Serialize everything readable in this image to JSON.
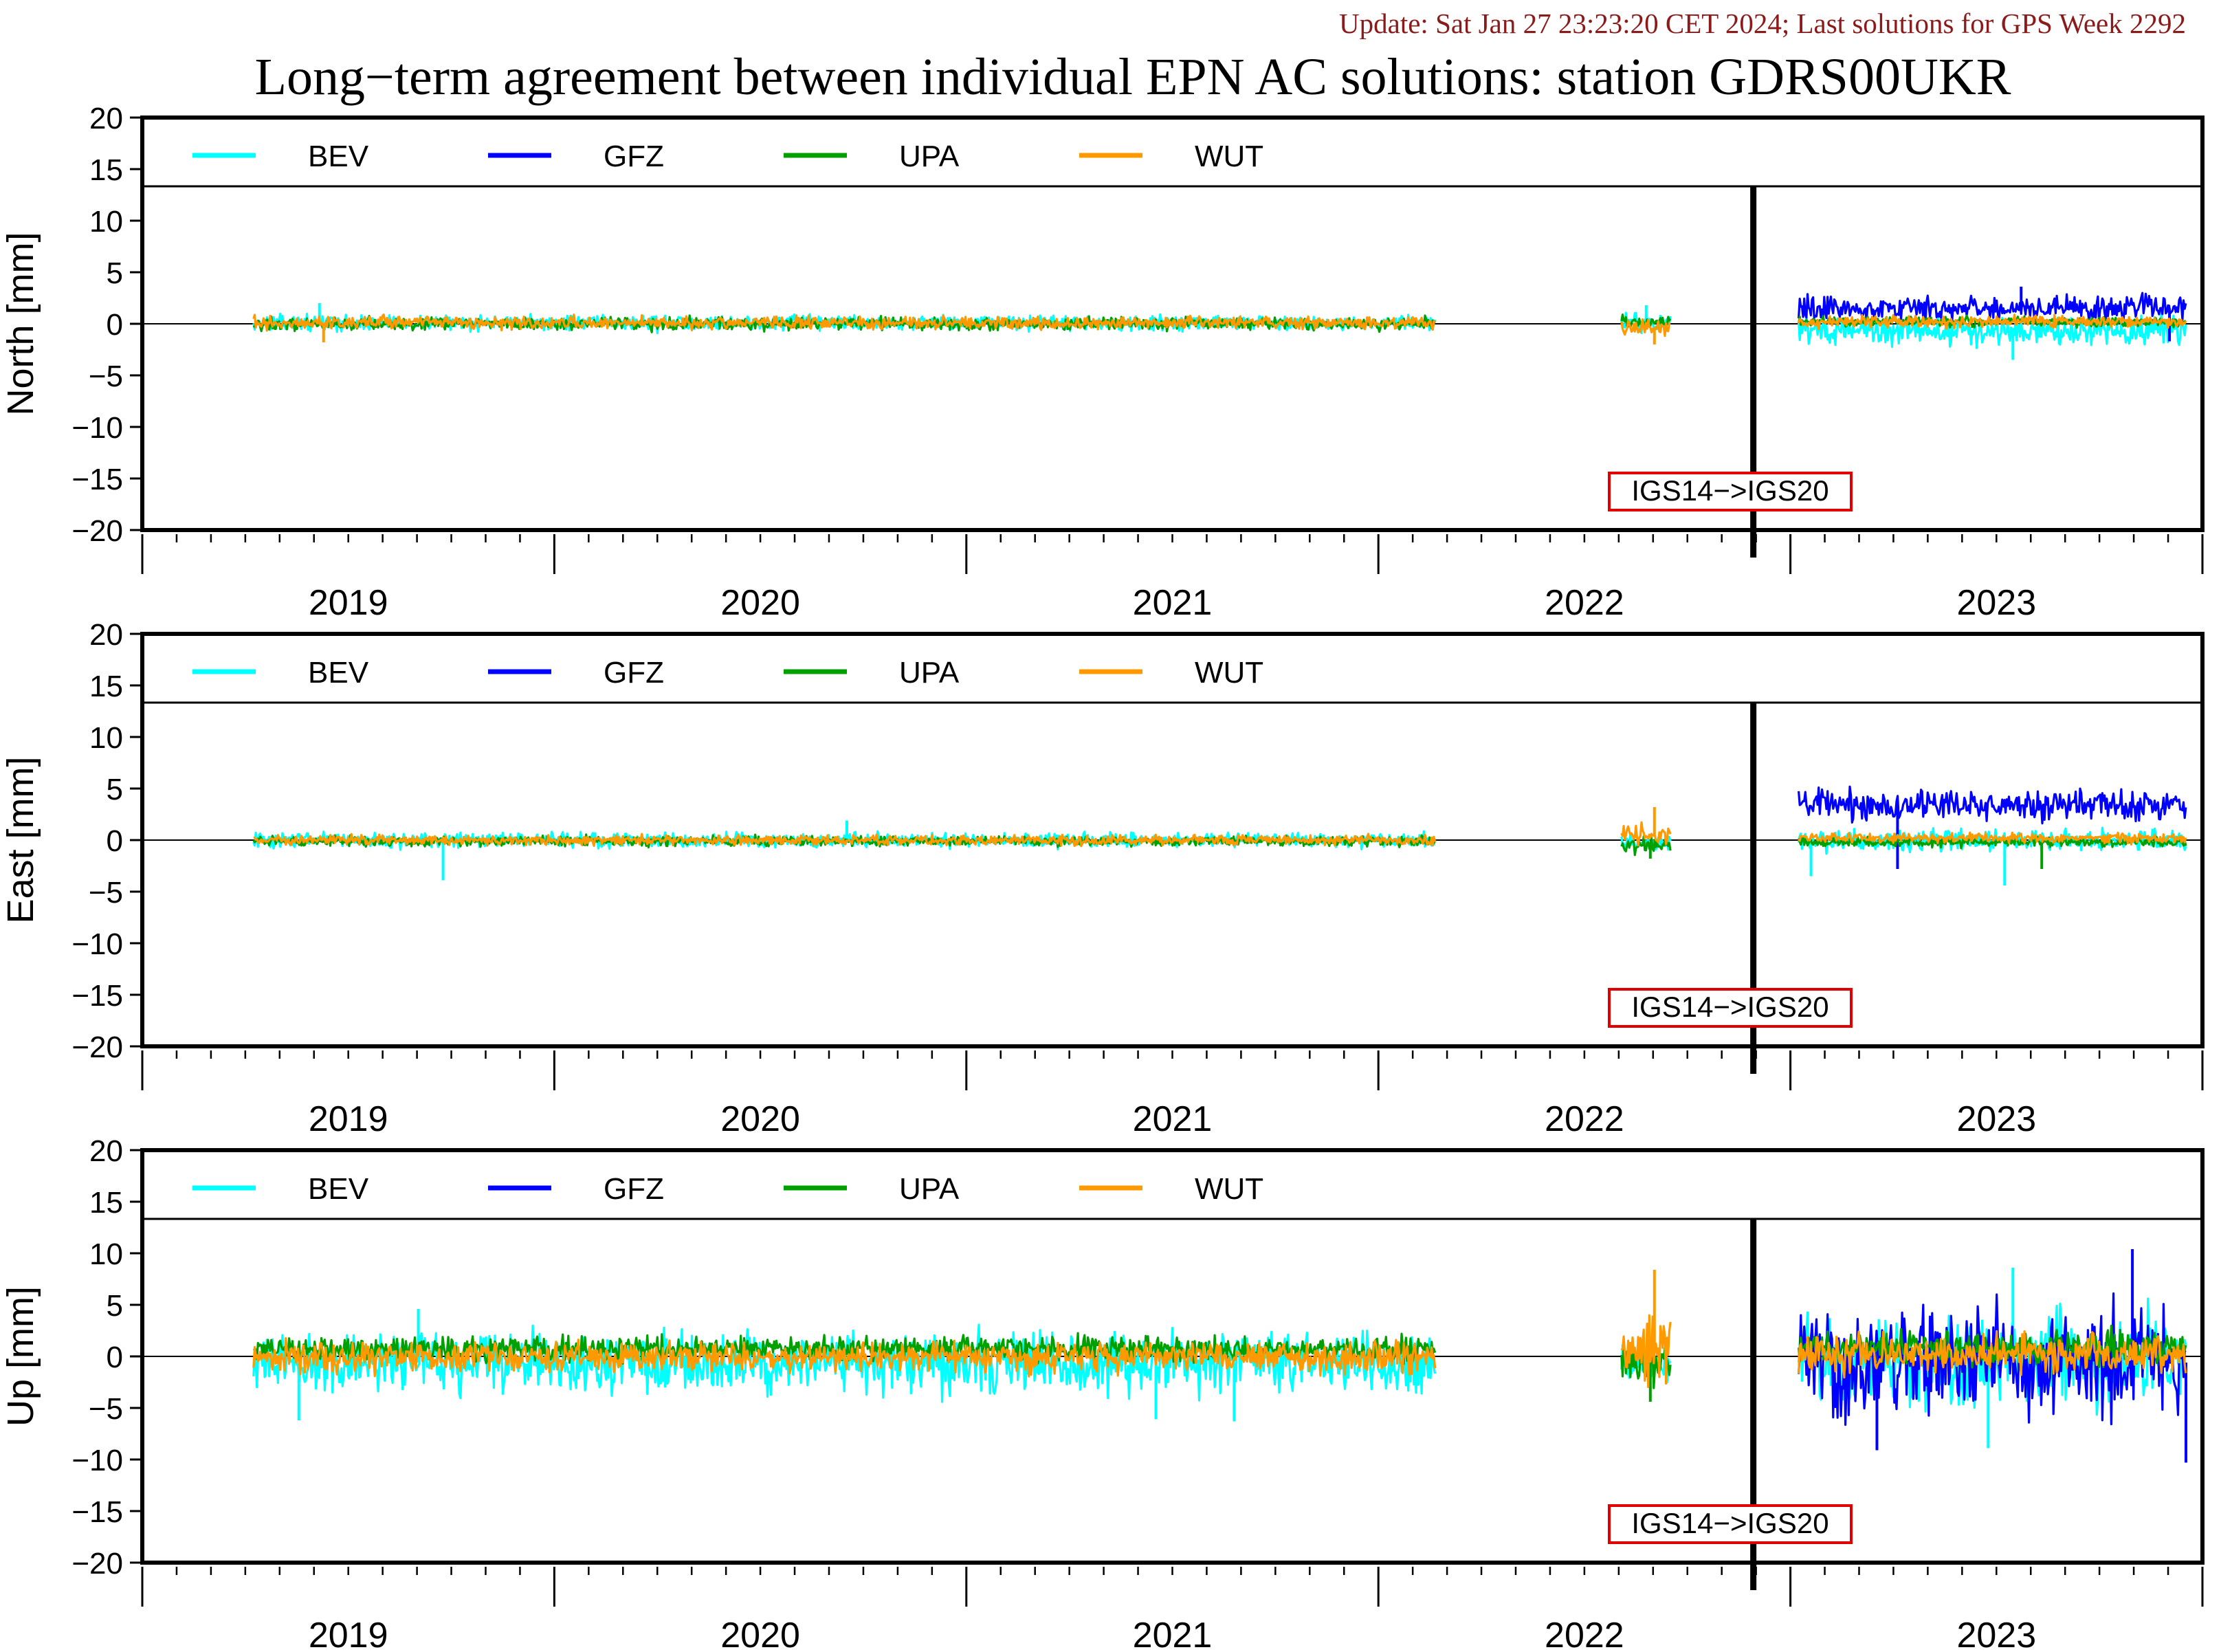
{
  "header": {
    "update_line": "Update: Sat Jan 27 23:23:20 CET 2024; Last solutions for GPS Week 2292",
    "title": "Long−term agreement between individual EPN AC solutions: station GDRS00UKR"
  },
  "colors": {
    "update_text": "#8b1a1a",
    "frame": "#000000",
    "annotation_border": "#e00000"
  },
  "chart_data": {
    "type": "line",
    "x_axis": {
      "unit": "year",
      "range": [
        2018.5,
        2023.5
      ],
      "year_labels": [
        {
          "label": "2019",
          "center": 2019.0
        },
        {
          "label": "2020",
          "center": 2020.0
        },
        {
          "label": "2021",
          "center": 2021.0
        },
        {
          "label": "2022",
          "center": 2022.0
        },
        {
          "label": "2023",
          "center": 2023.0
        }
      ],
      "major_ticks": [
        2018.5,
        2019.5,
        2020.5,
        2021.5,
        2022.5,
        2023.5
      ]
    },
    "y_axis": {
      "range": [
        -20,
        20
      ],
      "ticks": [
        20,
        15,
        10,
        5,
        0,
        -5,
        -10,
        -15,
        -20
      ]
    },
    "legend": {
      "placement": "top",
      "entries": [
        {
          "name": "BEV",
          "color": "#00ffff"
        },
        {
          "name": "GFZ",
          "color": "#0000ff"
        },
        {
          "name": "UPA",
          "color": "#00a000"
        },
        {
          "name": "WUT",
          "color": "#ff9900"
        }
      ]
    },
    "reference_frame_change": {
      "date": 2022.41,
      "label": "IGS14−>IGS20"
    },
    "data_segments": [
      {
        "start": 2018.77,
        "end": 2021.64,
        "series": [
          "BEV",
          "UPA",
          "WUT"
        ]
      },
      {
        "start": 2022.09,
        "end": 2022.21,
        "series": [
          "BEV",
          "UPA",
          "WUT"
        ]
      },
      {
        "start": 2022.52,
        "end": 2023.46,
        "series": [
          "BEV",
          "GFZ",
          "UPA",
          "WUT"
        ]
      }
    ],
    "panels": [
      {
        "component": "North",
        "ylabel": "North [mm]",
        "series": [
          {
            "name": "BEV",
            "segment_stats": [
              {
                "mean": 0.1,
                "amp": 0.6
              },
              {
                "mean": 0.2,
                "amp": 0.8
              },
              {
                "mean": -0.7,
                "amp": 1.2
              }
            ]
          },
          {
            "name": "GFZ",
            "segment_stats": [
              null,
              null,
              {
                "mean": 1.5,
                "amp": 1.0
              }
            ]
          },
          {
            "name": "UPA",
            "segment_stats": [
              {
                "mean": 0.0,
                "amp": 0.5
              },
              {
                "mean": 0.2,
                "amp": 0.5
              },
              {
                "mean": 0.2,
                "amp": 0.4
              }
            ]
          },
          {
            "name": "WUT",
            "segment_stats": [
              {
                "mean": 0.1,
                "amp": 0.5
              },
              {
                "mean": -0.4,
                "amp": 0.9
              },
              {
                "mean": 0.2,
                "amp": 0.5
              }
            ]
          }
        ],
        "peaks": [
          {
            "series": "BEV",
            "x": 2018.93,
            "y": 2.0
          },
          {
            "series": "WUT",
            "x": 2018.94,
            "y": -1.8
          },
          {
            "series": "BEV",
            "x": 2022.15,
            "y": 1.8
          },
          {
            "series": "WUT",
            "x": 2022.17,
            "y": -2.0
          },
          {
            "series": "BEV",
            "x": 2023.04,
            "y": -3.5
          },
          {
            "series": "GFZ",
            "x": 2023.06,
            "y": 3.6
          },
          {
            "series": "GFZ",
            "x": 2023.42,
            "y": -1.7
          }
        ]
      },
      {
        "component": "East",
        "ylabel": "East [mm]",
        "series": [
          {
            "name": "BEV",
            "segment_stats": [
              {
                "mean": 0.0,
                "amp": 0.6
              },
              {
                "mean": -0.3,
                "amp": 0.6
              },
              {
                "mean": 0.0,
                "amp": 0.9
              }
            ]
          },
          {
            "name": "GFZ",
            "segment_stats": [
              null,
              null,
              {
                "mean": 3.4,
                "amp": 1.2
              }
            ]
          },
          {
            "name": "UPA",
            "segment_stats": [
              {
                "mean": -0.1,
                "amp": 0.4
              },
              {
                "mean": -0.5,
                "amp": 0.6
              },
              {
                "mean": -0.2,
                "amp": 0.4
              }
            ]
          },
          {
            "name": "WUT",
            "segment_stats": [
              {
                "mean": 0.0,
                "amp": 0.4
              },
              {
                "mean": 0.4,
                "amp": 0.8
              },
              {
                "mean": 0.2,
                "amp": 0.4
              }
            ]
          }
        ],
        "peaks": [
          {
            "series": "BEV",
            "x": 2019.23,
            "y": -3.9
          },
          {
            "series": "BEV",
            "x": 2020.21,
            "y": 1.9
          },
          {
            "series": "WUT",
            "x": 2022.17,
            "y": 3.2
          },
          {
            "series": "UPA",
            "x": 2022.16,
            "y": -1.8
          },
          {
            "series": "BEV",
            "x": 2022.55,
            "y": -3.5
          },
          {
            "series": "BEV",
            "x": 2023.02,
            "y": -4.4
          },
          {
            "series": "UPA",
            "x": 2023.11,
            "y": -2.8
          },
          {
            "series": "GFZ",
            "x": 2022.76,
            "y": -2.8
          }
        ]
      },
      {
        "component": "Up",
        "ylabel": "Up [mm]",
        "series": [
          {
            "name": "BEV",
            "segment_stats": [
              {
                "mean": -0.6,
                "amp": 2.4
              },
              {
                "mean": -0.6,
                "amp": 1.6
              },
              {
                "mean": -0.3,
                "amp": 3.6
              }
            ]
          },
          {
            "name": "GFZ",
            "segment_stats": [
              null,
              null,
              {
                "mean": -0.6,
                "amp": 4.2
              }
            ]
          },
          {
            "name": "UPA",
            "segment_stats": [
              {
                "mean": 0.7,
                "amp": 1.0
              },
              {
                "mean": -0.8,
                "amp": 1.5
              },
              {
                "mean": 0.9,
                "amp": 1.3
              }
            ]
          },
          {
            "name": "WUT",
            "segment_stats": [
              {
                "mean": -0.1,
                "amp": 1.2
              },
              {
                "mean": 0.6,
                "amp": 2.5
              },
              {
                "mean": 0.2,
                "amp": 1.6
              }
            ]
          }
        ],
        "peaks": [
          {
            "series": "BEV",
            "x": 2018.88,
            "y": -6.2
          },
          {
            "series": "BEV",
            "x": 2019.17,
            "y": 4.6
          },
          {
            "series": "BEV",
            "x": 2020.96,
            "y": -6.1
          },
          {
            "series": "BEV",
            "x": 2021.15,
            "y": -6.3
          },
          {
            "series": "WUT",
            "x": 2022.17,
            "y": 8.4
          },
          {
            "series": "UPA",
            "x": 2022.16,
            "y": -4.4
          },
          {
            "series": "BEV",
            "x": 2023.04,
            "y": 8.6
          },
          {
            "series": "GFZ",
            "x": 2023.33,
            "y": 10.4
          },
          {
            "series": "GFZ",
            "x": 2023.46,
            "y": -10.3
          },
          {
            "series": "GFZ",
            "x": 2022.71,
            "y": -9.1
          },
          {
            "series": "BEV",
            "x": 2022.98,
            "y": -8.9
          }
        ]
      }
    ]
  }
}
